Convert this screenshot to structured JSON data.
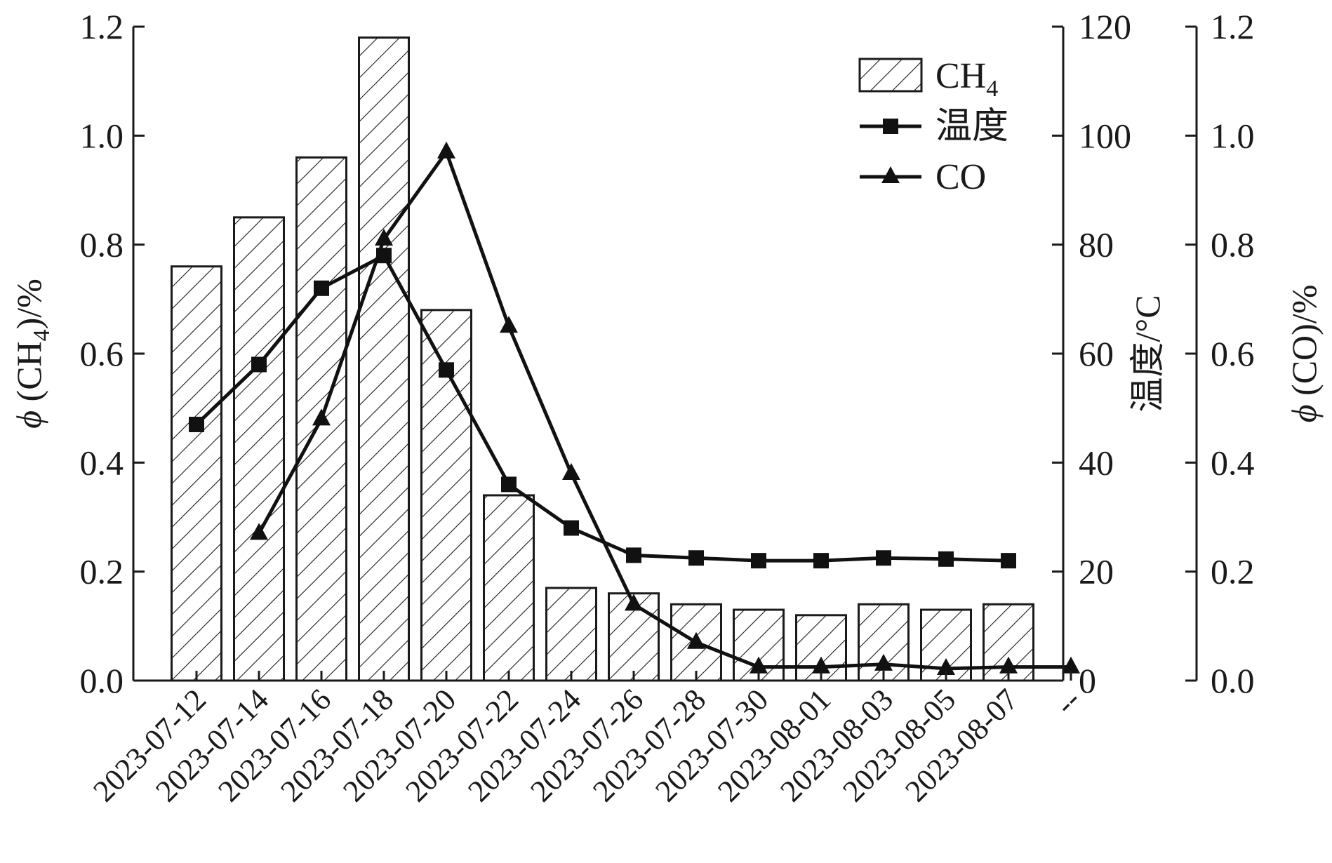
{
  "chart_data": {
    "type": "bar",
    "categories": [
      "2023-07-12",
      "2023-07-14",
      "2023-07-16",
      "2023-07-18",
      "2023-07-20",
      "2023-07-22",
      "2023-07-24",
      "2023-07-26",
      "2023-07-28",
      "2023-07-30",
      "2023-08-01",
      "2023-08-03",
      "2023-08-05",
      "2023-08-07",
      "--"
    ],
    "series": [
      {
        "name": "CH4",
        "kind": "bar",
        "axis": "left",
        "values": [
          0.76,
          0.85,
          0.96,
          1.18,
          0.68,
          0.34,
          0.17,
          0.16,
          0.14,
          0.13,
          0.12,
          0.14,
          0.13,
          0.14,
          null
        ]
      },
      {
        "name": "温度",
        "kind": "line",
        "marker": "square",
        "axis": "right1",
        "values": [
          47,
          58,
          72,
          78,
          57,
          36,
          28,
          23,
          22.5,
          22,
          22,
          22.5,
          22.3,
          22,
          null
        ]
      },
      {
        "name": "CO",
        "kind": "line",
        "marker": "triangle",
        "axis": "right2",
        "values": [
          null,
          0.27,
          0.48,
          0.81,
          0.97,
          0.65,
          0.38,
          0.14,
          0.07,
          0.025,
          0.025,
          0.03,
          0.022,
          0.025,
          0.025
        ]
      }
    ],
    "axes": {
      "left": {
        "label_prefix": "ϕ",
        "label_main": "(CH",
        "label_sub": "4",
        "label_suffix": ")/%",
        "range": [
          0,
          1.2
        ],
        "ticks": [
          "0.0",
          "0.2",
          "0.4",
          "0.6",
          "0.8",
          "1.0",
          "1.2"
        ]
      },
      "right1": {
        "label": "温度/°C",
        "range": [
          0,
          120
        ],
        "ticks": [
          "0",
          "20",
          "40",
          "60",
          "80",
          "100",
          "120"
        ]
      },
      "right2": {
        "label_prefix": "ϕ",
        "label_main": "(CO)/%",
        "range": [
          0,
          1.2
        ],
        "ticks": [
          "0.0",
          "0.2",
          "0.4",
          "0.6",
          "0.8",
          "1.0",
          "1.2"
        ]
      }
    },
    "legend": {
      "position": "top-right",
      "items": [
        {
          "label_main": "CH",
          "label_sub": "4",
          "symbol": "hatched-box"
        },
        {
          "label_main": "温度",
          "label_sub": "",
          "symbol": "line-square"
        },
        {
          "label_main": "CO",
          "label_sub": "",
          "symbol": "line-triangle"
        }
      ]
    },
    "colors": {
      "ink": "#111111",
      "bar_fill": "#ffffff"
    },
    "grid": false
  }
}
